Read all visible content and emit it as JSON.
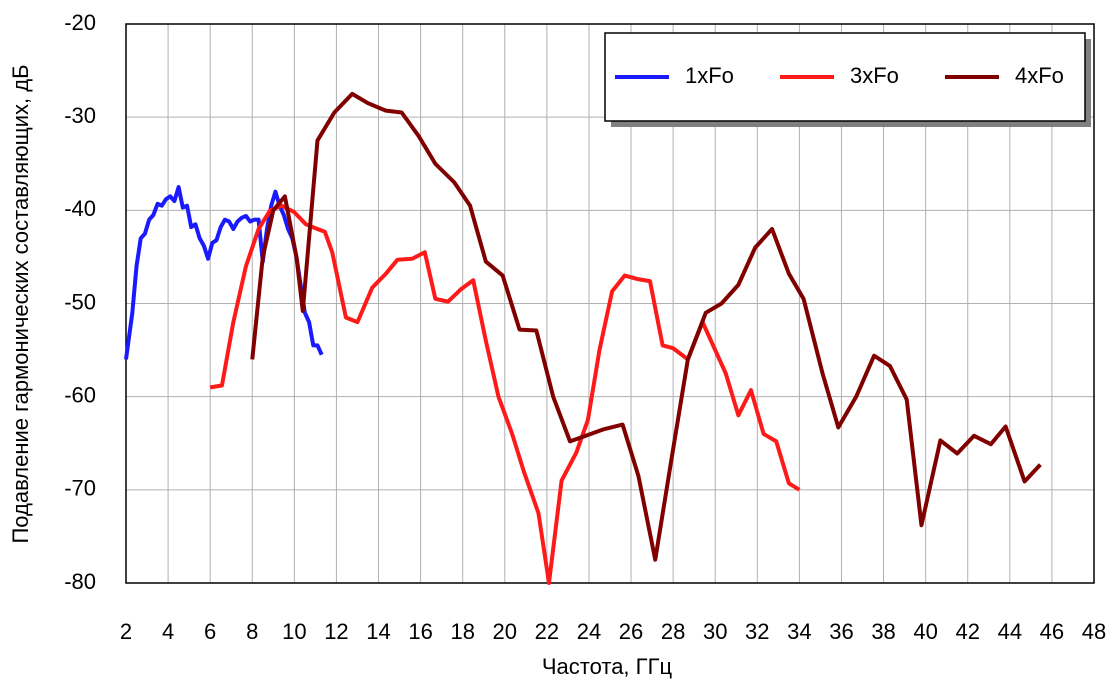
{
  "chart_data": {
    "type": "line",
    "xlabel": "Частота, ГГц",
    "ylabel": "Подавление гармонических составляющих, дБ",
    "xlim": [
      2,
      48
    ],
    "xticks": [
      2,
      4,
      6,
      8,
      10,
      12,
      14,
      16,
      18,
      20,
      22,
      24,
      26,
      28,
      30,
      32,
      34,
      36,
      38,
      40,
      42,
      44,
      46,
      48
    ],
    "ylim": [
      -80,
      -20
    ],
    "yticks": [
      -80,
      -70,
      -60,
      -50,
      -40,
      -30,
      -20
    ],
    "grid": true,
    "legend": "upper right",
    "series": [
      {
        "name": "1xFo",
        "color": "#1a1aff",
        "x": [
          2.0,
          2.3,
          2.5,
          2.7,
          2.9,
          3.1,
          3.3,
          3.5,
          3.7,
          3.9,
          4.1,
          4.3,
          4.5,
          4.7,
          4.9,
          5.1,
          5.3,
          5.5,
          5.7,
          5.9,
          6.1,
          6.3,
          6.5,
          6.7,
          6.9,
          7.1,
          7.3,
          7.5,
          7.7,
          7.9,
          8.1,
          8.3,
          8.5,
          8.7,
          8.9,
          9.1,
          9.3,
          9.5,
          9.7,
          9.9,
          10.1,
          10.3,
          10.5,
          10.7,
          10.9,
          11.1,
          11.3
        ],
        "values": [
          -56,
          -51,
          -46,
          -43,
          -42.5,
          -41,
          -40.5,
          -39.3,
          -39.5,
          -38.8,
          -38.5,
          -39,
          -37.5,
          -39.7,
          -39.5,
          -41.8,
          -41.5,
          -43,
          -43.8,
          -45.2,
          -43.5,
          -43.2,
          -41.8,
          -41,
          -41.2,
          -42,
          -41.2,
          -40.8,
          -40.6,
          -41.2,
          -41,
          -41,
          -45.5,
          -42,
          -39.5,
          -38,
          -39.5,
          -40.5,
          -42,
          -43,
          -45,
          -48,
          -51,
          -52,
          -54.5,
          -54.5,
          -55.5
        ]
      },
      {
        "name": "3xFo",
        "color": "#ff1a1a",
        "x": [
          6.0,
          6.56,
          7.1,
          7.7,
          8.3,
          8.85,
          9.4,
          10.0,
          10.55,
          11.1,
          11.45,
          11.8,
          12.45,
          13.0,
          13.7,
          14.35,
          14.9,
          15.6,
          16.2,
          16.7,
          17.3,
          17.9,
          18.5,
          19.1,
          19.7,
          20.35,
          20.9,
          21.6,
          22.1,
          22.7,
          23.4,
          23.95,
          24.5,
          25.1,
          25.7,
          26.35,
          26.9,
          27.5,
          28.0,
          28.7,
          29.4,
          29.9,
          30.5,
          31.1,
          31.7,
          32.3,
          32.9,
          33.5,
          34.0
        ],
        "values": [
          -59,
          -58.8,
          -52,
          -46,
          -42,
          -40,
          -39.5,
          -40.2,
          -41.5,
          -42,
          -42.3,
          -44.5,
          -51.5,
          -52,
          -48.3,
          -46.8,
          -45.3,
          -45.2,
          -44.5,
          -49.5,
          -49.8,
          -48.5,
          -47.5,
          -54,
          -60,
          -64,
          -68,
          -72.5,
          -80,
          -69,
          -66,
          -62.5,
          -55,
          -48.7,
          -47,
          -47.4,
          -47.6,
          -54.5,
          -54.8,
          -56,
          -52,
          -54.5,
          -57.5,
          -62,
          -59.3,
          -64,
          -64.8,
          -69.3,
          -70
        ]
      },
      {
        "name": "4xFo",
        "color": "#800000",
        "x": [
          8.0,
          8.5,
          9.0,
          9.55,
          10.1,
          10.4,
          11.1,
          11.9,
          12.75,
          13.5,
          14.35,
          15.1,
          15.9,
          16.7,
          17.6,
          18.35,
          19.1,
          19.9,
          20.7,
          21.5,
          22.3,
          23.1,
          23.85,
          24.7,
          25.6,
          26.35,
          27.15,
          27.9,
          28.7,
          29.55,
          30.3,
          31.1,
          31.9,
          32.7,
          33.5,
          34.2,
          35.1,
          35.85,
          36.7,
          37.55,
          38.3,
          39.1,
          39.8,
          40.7,
          41.5,
          42.3,
          43.1,
          43.8,
          44.7,
          45.45
        ],
        "values": [
          -56,
          -45,
          -40,
          -38.5,
          -45,
          -50.8,
          -32.5,
          -29.5,
          -27.5,
          -28.5,
          -29.3,
          -29.5,
          -32,
          -35,
          -37,
          -39.5,
          -45.5,
          -47,
          -52.8,
          -52.9,
          -60,
          -64.8,
          -64.2,
          -63.5,
          -63,
          -68.5,
          -77.5,
          -67,
          -56,
          -51,
          -50,
          -48,
          -44,
          -42,
          -46.8,
          -49.5,
          -57.5,
          -63.3,
          -60,
          -55.6,
          -56.7,
          -60.3,
          -73.8,
          -64.7,
          -66.1,
          -64.2,
          -65.1,
          -63.2,
          -69.1,
          -67.3
        ]
      }
    ]
  }
}
